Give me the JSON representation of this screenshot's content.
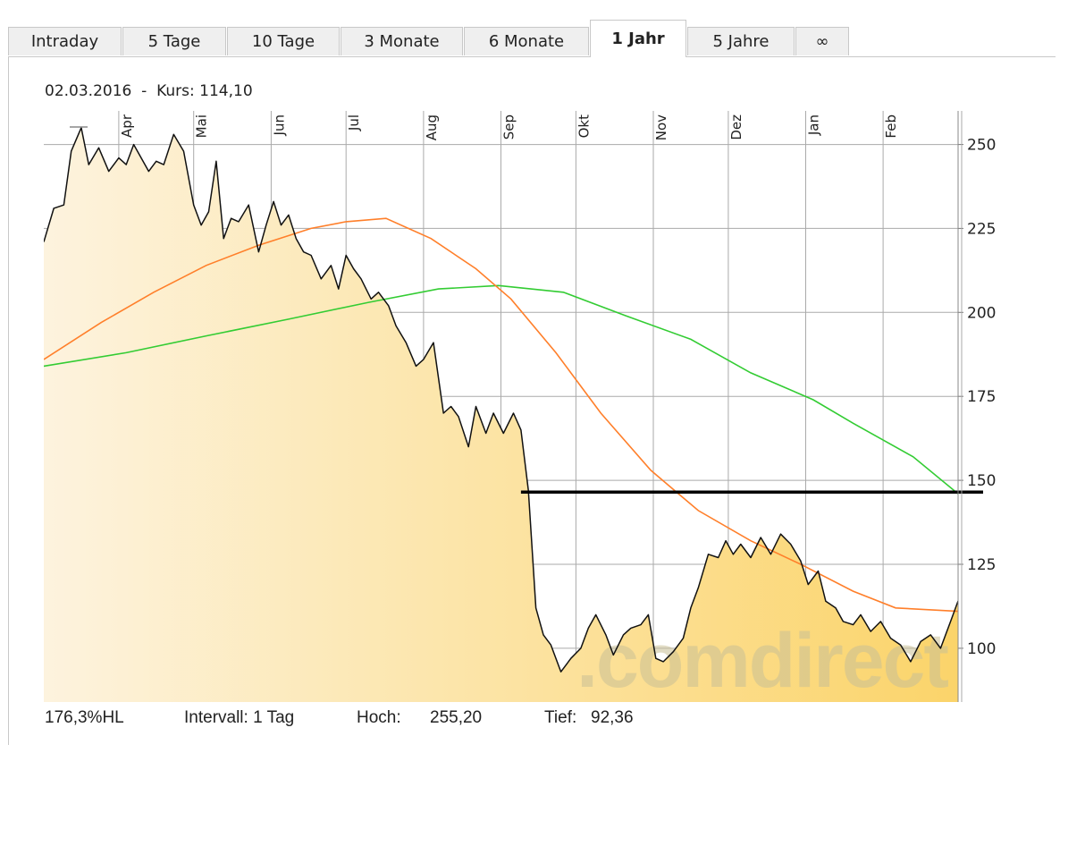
{
  "tabs": [
    {
      "label": "Intraday",
      "active": false
    },
    {
      "label": "5 Tage",
      "active": false
    },
    {
      "label": "10 Tage",
      "active": false
    },
    {
      "label": "3 Monate",
      "active": false
    },
    {
      "label": "6 Monate",
      "active": false
    },
    {
      "label": "1 Jahr",
      "active": true
    },
    {
      "label": "5 Jahre",
      "active": false
    },
    {
      "label": "∞",
      "active": false
    }
  ],
  "info": {
    "date": "02.03.2016",
    "separator": "-",
    "price_label": "Kurs:",
    "price": "114,10"
  },
  "footer": {
    "hl": "176,3%HL",
    "interval": "Intervall: 1 Tag",
    "high_label": "Hoch:",
    "high": "255,20",
    "low_label": "Tief:",
    "low": "92,36"
  },
  "watermark": ".comdirect",
  "colors": {
    "price_line": "#111111",
    "area_light": "#fdf3de",
    "area_dark": "#fbd46a",
    "ma_short": "#ff7f2a",
    "ma_long": "#33cc33",
    "grid": "#aaaaaa",
    "annotation": "#000000"
  },
  "chart_data": {
    "type": "line",
    "title": "",
    "xlabel": "",
    "ylabel": "",
    "x_range": [
      "2015-03-02",
      "2016-03-02"
    ],
    "ylim": [
      84,
      260
    ],
    "y_ticks": [
      100,
      125,
      150,
      175,
      200,
      225,
      250
    ],
    "month_ticks": [
      {
        "label": "Apr",
        "date": "2015-04-01"
      },
      {
        "label": "Mai",
        "date": "2015-05-01"
      },
      {
        "label": "Jun",
        "date": "2015-06-01"
      },
      {
        "label": "Jul",
        "date": "2015-07-01"
      },
      {
        "label": "Aug",
        "date": "2015-08-01"
      },
      {
        "label": "Sep",
        "date": "2015-09-01"
      },
      {
        "label": "Okt",
        "date": "2015-10-01"
      },
      {
        "label": "Nov",
        "date": "2015-11-01"
      },
      {
        "label": "Dez",
        "date": "2015-12-01"
      },
      {
        "label": "Jan",
        "date": "2016-01-01"
      },
      {
        "label": "Feb",
        "date": "2016-02-01"
      }
    ],
    "grid": true,
    "series": [
      {
        "role": "price",
        "points": [
          [
            "2015-03-02",
            221
          ],
          [
            "2015-03-06",
            231
          ],
          [
            "2015-03-10",
            232
          ],
          [
            "2015-03-13",
            248
          ],
          [
            "2015-03-17",
            255
          ],
          [
            "2015-03-20",
            244
          ],
          [
            "2015-03-24",
            249
          ],
          [
            "2015-03-28",
            242
          ],
          [
            "2015-04-01",
            246
          ],
          [
            "2015-04-04",
            244
          ],
          [
            "2015-04-07",
            250
          ],
          [
            "2015-04-10",
            246
          ],
          [
            "2015-04-13",
            242
          ],
          [
            "2015-04-16",
            245
          ],
          [
            "2015-04-19",
            244
          ],
          [
            "2015-04-23",
            253
          ],
          [
            "2015-04-27",
            248
          ],
          [
            "2015-05-01",
            232
          ],
          [
            "2015-05-04",
            226
          ],
          [
            "2015-05-07",
            230
          ],
          [
            "2015-05-10",
            245
          ],
          [
            "2015-05-13",
            222
          ],
          [
            "2015-05-16",
            228
          ],
          [
            "2015-05-19",
            227
          ],
          [
            "2015-05-23",
            232
          ],
          [
            "2015-05-27",
            218
          ],
          [
            "2015-05-30",
            226
          ],
          [
            "2015-06-02",
            233
          ],
          [
            "2015-06-05",
            226
          ],
          [
            "2015-06-08",
            229
          ],
          [
            "2015-06-11",
            222
          ],
          [
            "2015-06-14",
            218
          ],
          [
            "2015-06-17",
            217
          ],
          [
            "2015-06-21",
            210
          ],
          [
            "2015-06-25",
            214
          ],
          [
            "2015-06-28",
            207
          ],
          [
            "2015-07-01",
            217
          ],
          [
            "2015-07-04",
            213
          ],
          [
            "2015-07-07",
            210
          ],
          [
            "2015-07-11",
            204
          ],
          [
            "2015-07-14",
            206
          ],
          [
            "2015-07-18",
            202
          ],
          [
            "2015-07-21",
            196
          ],
          [
            "2015-07-25",
            191
          ],
          [
            "2015-07-29",
            184
          ],
          [
            "2015-08-01",
            186
          ],
          [
            "2015-08-05",
            191
          ],
          [
            "2015-08-09",
            170
          ],
          [
            "2015-08-12",
            172
          ],
          [
            "2015-08-15",
            169
          ],
          [
            "2015-08-19",
            160
          ],
          [
            "2015-08-22",
            172
          ],
          [
            "2015-08-26",
            164
          ],
          [
            "2015-08-29",
            170
          ],
          [
            "2015-09-02",
            164
          ],
          [
            "2015-09-06",
            170
          ],
          [
            "2015-09-09",
            165
          ],
          [
            "2015-09-12",
            147
          ],
          [
            "2015-09-15",
            112
          ],
          [
            "2015-09-18",
            104
          ],
          [
            "2015-09-21",
            101
          ],
          [
            "2015-09-25",
            93
          ],
          [
            "2015-09-29",
            97
          ],
          [
            "2015-10-03",
            100
          ],
          [
            "2015-10-06",
            106
          ],
          [
            "2015-10-09",
            110
          ],
          [
            "2015-10-13",
            104
          ],
          [
            "2015-10-16",
            98
          ],
          [
            "2015-10-20",
            104
          ],
          [
            "2015-10-23",
            106
          ],
          [
            "2015-10-27",
            107
          ],
          [
            "2015-10-30",
            110
          ],
          [
            "2015-11-02",
            97
          ],
          [
            "2015-11-05",
            96
          ],
          [
            "2015-11-09",
            99
          ],
          [
            "2015-11-13",
            103
          ],
          [
            "2015-11-16",
            112
          ],
          [
            "2015-11-19",
            118
          ],
          [
            "2015-11-23",
            128
          ],
          [
            "2015-11-27",
            127
          ],
          [
            "2015-11-30",
            132
          ],
          [
            "2015-12-03",
            128
          ],
          [
            "2015-12-06",
            131
          ],
          [
            "2015-12-10",
            127
          ],
          [
            "2015-12-14",
            133
          ],
          [
            "2015-12-18",
            128
          ],
          [
            "2015-12-22",
            134
          ],
          [
            "2015-12-26",
            131
          ],
          [
            "2015-12-30",
            126
          ],
          [
            "2016-01-02",
            119
          ],
          [
            "2016-01-06",
            123
          ],
          [
            "2016-01-09",
            114
          ],
          [
            "2016-01-13",
            112
          ],
          [
            "2016-01-16",
            108
          ],
          [
            "2016-01-20",
            107
          ],
          [
            "2016-01-23",
            110
          ],
          [
            "2016-01-27",
            105
          ],
          [
            "2016-01-31",
            108
          ],
          [
            "2016-02-04",
            103
          ],
          [
            "2016-02-08",
            101
          ],
          [
            "2016-02-12",
            96
          ],
          [
            "2016-02-16",
            102
          ],
          [
            "2016-02-20",
            104
          ],
          [
            "2016-02-24",
            100
          ],
          [
            "2016-02-28",
            108
          ],
          [
            "2016-03-02",
            114.1
          ]
        ]
      },
      {
        "role": "moving-average-short",
        "points": [
          [
            "2015-03-02",
            186
          ],
          [
            "2015-03-25",
            197
          ],
          [
            "2015-04-15",
            206
          ],
          [
            "2015-05-06",
            214
          ],
          [
            "2015-05-27",
            220
          ],
          [
            "2015-06-17",
            225
          ],
          [
            "2015-07-01",
            227
          ],
          [
            "2015-07-17",
            228
          ],
          [
            "2015-08-04",
            222
          ],
          [
            "2015-08-22",
            213
          ],
          [
            "2015-09-05",
            204
          ],
          [
            "2015-09-23",
            188
          ],
          [
            "2015-10-11",
            170
          ],
          [
            "2015-10-31",
            153
          ],
          [
            "2015-11-19",
            141
          ],
          [
            "2015-12-10",
            132
          ],
          [
            "2015-12-30",
            125
          ],
          [
            "2016-01-20",
            117
          ],
          [
            "2016-02-06",
            112
          ],
          [
            "2016-03-02",
            111
          ]
        ]
      },
      {
        "role": "moving-average-long",
        "points": [
          [
            "2015-03-02",
            184
          ],
          [
            "2015-04-04",
            188
          ],
          [
            "2015-05-06",
            193
          ],
          [
            "2015-06-08",
            198
          ],
          [
            "2015-07-10",
            203
          ],
          [
            "2015-08-07",
            207
          ],
          [
            "2015-08-31",
            208
          ],
          [
            "2015-09-26",
            206
          ],
          [
            "2015-10-21",
            199
          ],
          [
            "2015-11-16",
            192
          ],
          [
            "2015-12-10",
            182
          ],
          [
            "2016-01-04",
            174
          ],
          [
            "2016-01-20",
            167
          ],
          [
            "2016-02-13",
            157
          ],
          [
            "2016-03-02",
            146
          ]
        ]
      }
    ],
    "annotations": [
      {
        "type": "horizontal-line",
        "y": 146.5,
        "from": "2015-09-09",
        "to": "2016-03-12"
      }
    ]
  }
}
